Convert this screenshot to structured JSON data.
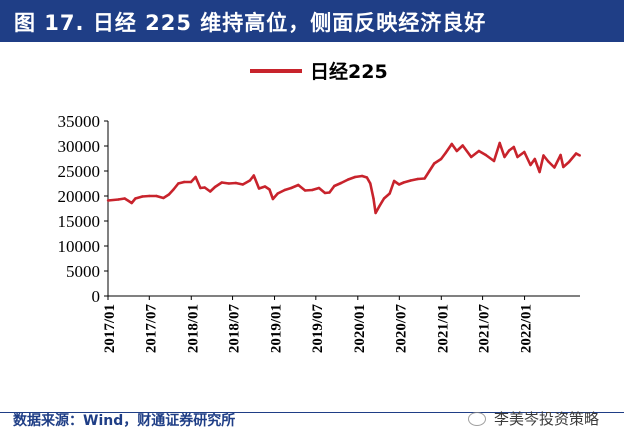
{
  "title": "图 17. 日经 225 维持高位，侧面反映经济良好",
  "source": "数据来源：Wind，财通证券研究所",
  "watermark": "李美岑投资策略",
  "colors": {
    "title_bg": "#1f3e86",
    "series": "#c8232c",
    "axis": "#000000"
  },
  "chart_data": {
    "type": "line",
    "series": [
      {
        "name": "日经225",
        "color": "#c8232c",
        "points": [
          [
            "2017-01-01",
            19100
          ],
          [
            "2017-02-15",
            19300
          ],
          [
            "2017-03-15",
            19500
          ],
          [
            "2017-04-15",
            18600
          ],
          [
            "2017-05-01",
            19500
          ],
          [
            "2017-06-01",
            19900
          ],
          [
            "2017-07-01",
            20000
          ],
          [
            "2017-08-01",
            20000
          ],
          [
            "2017-09-01",
            19600
          ],
          [
            "2017-09-25",
            20300
          ],
          [
            "2017-10-15",
            21300
          ],
          [
            "2017-11-05",
            22500
          ],
          [
            "2017-12-01",
            22800
          ],
          [
            "2017-12-31",
            22800
          ],
          [
            "2018-01-20",
            23800
          ],
          [
            "2018-02-10",
            21600
          ],
          [
            "2018-03-01",
            21700
          ],
          [
            "2018-03-25",
            20900
          ],
          [
            "2018-04-15",
            21800
          ],
          [
            "2018-05-15",
            22700
          ],
          [
            "2018-06-15",
            22500
          ],
          [
            "2018-07-15",
            22600
          ],
          [
            "2018-08-15",
            22300
          ],
          [
            "2018-09-15",
            23100
          ],
          [
            "2018-10-02",
            24100
          ],
          [
            "2018-10-25",
            21500
          ],
          [
            "2018-11-20",
            21900
          ],
          [
            "2018-12-10",
            21300
          ],
          [
            "2018-12-25",
            19400
          ],
          [
            "2019-01-15",
            20500
          ],
          [
            "2019-02-15",
            21200
          ],
          [
            "2019-03-15",
            21600
          ],
          [
            "2019-04-15",
            22200
          ],
          [
            "2019-05-15",
            21100
          ],
          [
            "2019-06-15",
            21200
          ],
          [
            "2019-07-15",
            21600
          ],
          [
            "2019-08-10",
            20600
          ],
          [
            "2019-08-30",
            20700
          ],
          [
            "2019-09-20",
            22000
          ],
          [
            "2019-10-20",
            22600
          ],
          [
            "2019-11-20",
            23300
          ],
          [
            "2019-12-20",
            23800
          ],
          [
            "2020-01-20",
            24000
          ],
          [
            "2020-02-10",
            23700
          ],
          [
            "2020-02-25",
            22500
          ],
          [
            "2020-03-10",
            19500
          ],
          [
            "2020-03-19",
            16600
          ],
          [
            "2020-04-05",
            18000
          ],
          [
            "2020-04-25",
            19500
          ],
          [
            "2020-05-20",
            20500
          ],
          [
            "2020-06-08",
            23000
          ],
          [
            "2020-06-30",
            22300
          ],
          [
            "2020-07-20",
            22700
          ],
          [
            "2020-08-20",
            23100
          ],
          [
            "2020-09-20",
            23400
          ],
          [
            "2020-10-20",
            23500
          ],
          [
            "2020-11-10",
            25000
          ],
          [
            "2020-12-01",
            26500
          ],
          [
            "2020-12-31",
            27400
          ],
          [
            "2021-01-20",
            28600
          ],
          [
            "2021-02-16",
            30400
          ],
          [
            "2021-03-10",
            29000
          ],
          [
            "2021-04-05",
            30100
          ],
          [
            "2021-05-12",
            27800
          ],
          [
            "2021-06-15",
            29000
          ],
          [
            "2021-07-15",
            28200
          ],
          [
            "2021-08-20",
            27000
          ],
          [
            "2021-09-14",
            30600
          ],
          [
            "2021-10-05",
            27800
          ],
          [
            "2021-10-25",
            29100
          ],
          [
            "2021-11-15",
            29800
          ],
          [
            "2021-12-01",
            27800
          ],
          [
            "2021-12-31",
            28800
          ],
          [
            "2022-01-27",
            26200
          ],
          [
            "2022-02-15",
            27400
          ],
          [
            "2022-03-08",
            24800
          ],
          [
            "2022-03-25",
            28100
          ],
          [
            "2022-04-15",
            26900
          ],
          [
            "2022-05-12",
            25700
          ],
          [
            "2022-06-08",
            28200
          ],
          [
            "2022-06-20",
            25800
          ],
          [
            "2022-07-15",
            26800
          ],
          [
            "2022-08-15",
            28500
          ],
          [
            "2022-08-31",
            28100
          ]
        ]
      }
    ],
    "x_ticks": [
      "2017/01",
      "2017/07",
      "2018/01",
      "2018/07",
      "2019/01",
      "2019/07",
      "2020/01",
      "2020/07",
      "2021/01",
      "2021/07",
      "2022/01"
    ],
    "ylim": [
      0,
      35000
    ],
    "y_ticks": [
      0,
      5000,
      10000,
      15000,
      20000,
      25000,
      30000,
      35000
    ],
    "xlabel": "",
    "ylabel": "",
    "grid": false,
    "legend": "top-center"
  }
}
